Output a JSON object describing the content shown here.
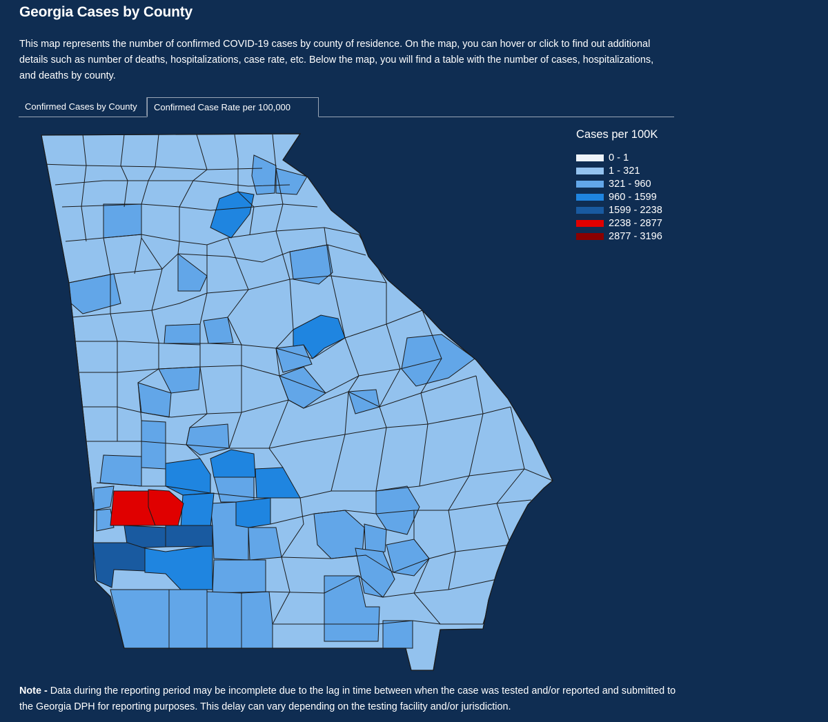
{
  "header": {
    "title": "Georgia Cases by County",
    "intro": "This map represents the number of confirmed COVID-19 cases by county of residence.  On the map, you can hover or click to find out additional details such as number of deaths, hospitalizations, case rate, etc. Below the map, you will find a table with the number of cases, hospitalizations, and deaths by county."
  },
  "tabs": [
    {
      "label": "Confirmed Cases by County",
      "active": false
    },
    {
      "label": "Confirmed Case Rate per 100,000",
      "active": true
    }
  ],
  "legend": {
    "title": "Cases per 100K",
    "bins": [
      {
        "label": "0 - 1",
        "color": "#eef4fb"
      },
      {
        "label": "1 - 321",
        "color": "#93c2ee"
      },
      {
        "label": "321 - 960",
        "color": "#62a6e8"
      },
      {
        "label": "960 - 1599",
        "color": "#1f85e0"
      },
      {
        "label": "1599 - 2238",
        "color": "#195aa0"
      },
      {
        "label": "2238 - 2877",
        "color": "#e00000"
      },
      {
        "label": "2877 - 3196",
        "color": "#8a0000"
      }
    ]
  },
  "colors": {
    "background": "#0f2d52",
    "county_border": "#1a1a1a"
  },
  "note": {
    "label": "Note - ",
    "text": "Data during the reporting period may be incomplete due to the lag in time between when the case was tested and/or reported and submitted to the Georgia DPH for reporting purposes. This delay can vary depending on the testing facility and/or jurisdiction."
  }
}
